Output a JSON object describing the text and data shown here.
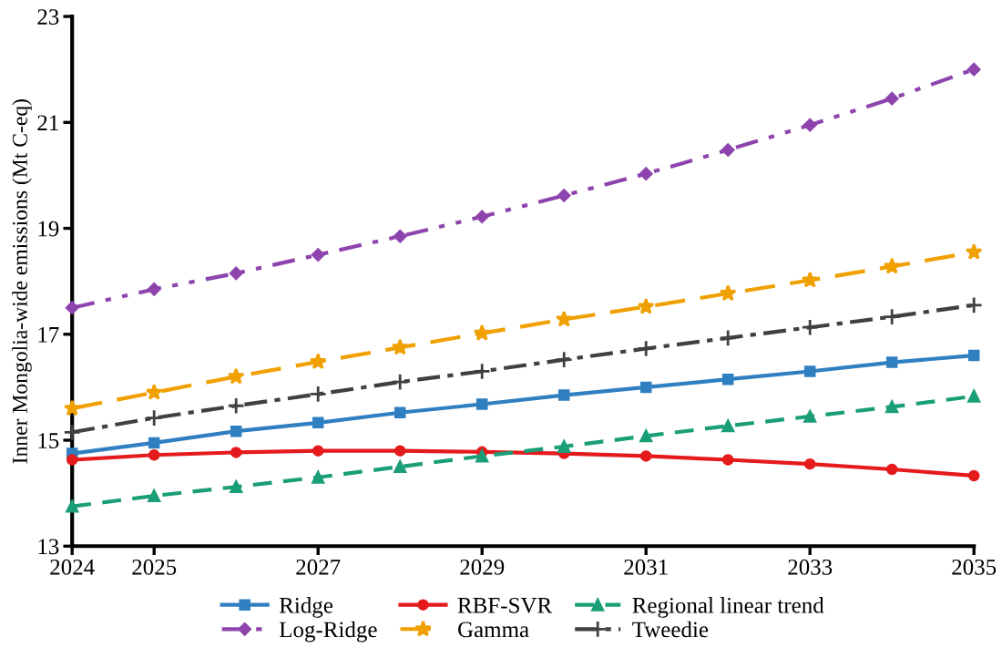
{
  "chart_data": {
    "type": "line",
    "ylabel": "Inner Mongolia-wide emissions (Mt C-eq)",
    "x": [
      2024,
      2025,
      2026,
      2027,
      2028,
      2029,
      2030,
      2031,
      2032,
      2033,
      2034,
      2035
    ],
    "xlim": [
      2024,
      2035
    ],
    "xticks": [
      2024,
      2025,
      2027,
      2029,
      2031,
      2033,
      2035
    ],
    "ylim": [
      13,
      23
    ],
    "yticks": [
      13,
      15,
      17,
      19,
      21,
      23
    ],
    "grid": false,
    "legend": "bottom",
    "series": [
      {
        "name": "Ridge",
        "color": "#2f7fc1",
        "marker": "square",
        "line_style": "solid",
        "values": [
          14.75,
          14.95,
          15.17,
          15.33,
          15.52,
          15.68,
          15.85,
          16.0,
          16.15,
          16.3,
          16.47,
          16.6
        ]
      },
      {
        "name": "RBF-SVR",
        "color": "#e41a1c",
        "marker": "circle",
        "line_style": "solid",
        "values": [
          14.63,
          14.72,
          14.77,
          14.8,
          14.8,
          14.78,
          14.75,
          14.7,
          14.63,
          14.55,
          14.45,
          14.33
        ]
      },
      {
        "name": "Regional linear trend",
        "color": "#1a9e77",
        "marker": "triangle",
        "line_style": "dashed",
        "values": [
          13.75,
          13.95,
          14.12,
          14.3,
          14.5,
          14.7,
          14.88,
          15.08,
          15.27,
          15.45,
          15.63,
          15.83
        ]
      },
      {
        "name": "Log-Ridge",
        "color": "#8e44ad",
        "marker": "diamond",
        "line_style": "dashdotdot",
        "values": [
          17.5,
          17.85,
          18.15,
          18.5,
          18.85,
          19.22,
          19.62,
          20.03,
          20.48,
          20.95,
          21.45,
          22.0
        ]
      },
      {
        "name": "Gamma",
        "color": "#f0a000",
        "marker": "star",
        "line_style": "longdash",
        "values": [
          15.6,
          15.9,
          16.2,
          16.48,
          16.75,
          17.02,
          17.28,
          17.52,
          17.77,
          18.02,
          18.28,
          18.55
        ]
      },
      {
        "name": "Tweedie",
        "color": "#404040",
        "marker": "cross",
        "line_style": "dashdot",
        "values": [
          15.15,
          15.42,
          15.65,
          15.87,
          16.1,
          16.3,
          16.52,
          16.73,
          16.93,
          17.13,
          17.33,
          17.55
        ]
      }
    ]
  }
}
